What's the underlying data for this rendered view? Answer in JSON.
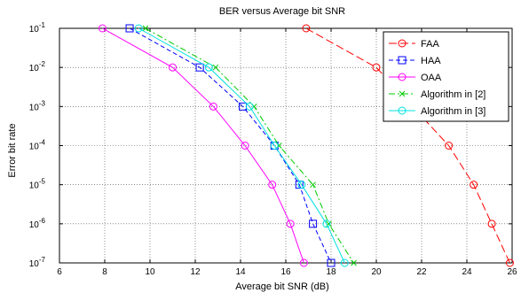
{
  "chart_data": {
    "type": "line",
    "title": "BER versus Average bit SNR",
    "xlabel": "Average bit SNR (dB)",
    "ylabel": "Error bit rate",
    "xlim": [
      6,
      26
    ],
    "ylim": [
      1e-07,
      0.1
    ],
    "yscale": "log",
    "grid": true,
    "legend_position": "top-right",
    "x_ticks": [
      "6",
      "8",
      "10",
      "12",
      "14",
      "16",
      "18",
      "20",
      "22",
      "24",
      "26"
    ],
    "y_ticks": [
      {
        "base": "10",
        "exp": "-1"
      },
      {
        "base": "10",
        "exp": "-2"
      },
      {
        "base": "10",
        "exp": "-3"
      },
      {
        "base": "10",
        "exp": "-4"
      },
      {
        "base": "10",
        "exp": "-5"
      },
      {
        "base": "10",
        "exp": "-6"
      },
      {
        "base": "10",
        "exp": "-7"
      }
    ],
    "series": [
      {
        "name": "FAA",
        "color": "#ff0000",
        "marker": "circle",
        "dash": "long-dash",
        "x": [
          16.9,
          20.0,
          23.2,
          24.3,
          25.1,
          25.9
        ],
        "y": [
          0.1,
          0.01,
          0.0001,
          1e-05,
          1e-06,
          1e-07
        ]
      },
      {
        "name": "HAA",
        "color": "#0000ff",
        "marker": "square",
        "dash": "dashed",
        "x": [
          9.1,
          12.2,
          14.1,
          15.5,
          16.6,
          17.2,
          18.0
        ],
        "y": [
          0.1,
          0.01,
          0.001,
          0.0001,
          1e-05,
          1e-06,
          1e-07
        ]
      },
      {
        "name": "OAA",
        "color": "#ff00ff",
        "marker": "circle",
        "dash": "solid",
        "x": [
          7.9,
          11.0,
          12.8,
          14.2,
          15.4,
          16.2,
          16.8
        ],
        "y": [
          0.1,
          0.01,
          0.001,
          0.0001,
          1e-05,
          1e-06,
          1e-07
        ]
      },
      {
        "name": "Algorithm in [2]",
        "color": "#00cc00",
        "marker": "x",
        "dash": "dash-dot",
        "x": [
          9.8,
          12.9,
          14.6,
          15.7,
          17.2,
          17.9,
          19.0
        ],
        "y": [
          0.1,
          0.01,
          0.001,
          0.0001,
          1e-05,
          1e-06,
          1e-07
        ]
      },
      {
        "name": "Algorithm in [3]",
        "color": "#00e0e0",
        "marker": "circle",
        "dash": "solid",
        "x": [
          9.5,
          12.6,
          14.4,
          15.5,
          16.7,
          17.8,
          18.6
        ],
        "y": [
          0.1,
          0.01,
          0.001,
          0.0001,
          1e-05,
          1e-06,
          1e-07
        ]
      }
    ]
  }
}
